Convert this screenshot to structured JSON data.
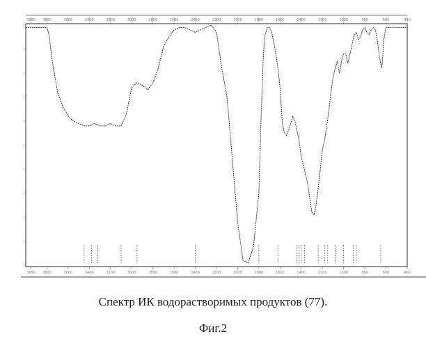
{
  "figure": {
    "caption": "Спектр ИК водорастворимых продуктов (77).",
    "label": "Фиг.2"
  },
  "chart_data": {
    "type": "line",
    "title": "",
    "xlabel": "",
    "ylabel": "",
    "xlim": [
      4000,
      400
    ],
    "ylim": [
      0,
      100
    ],
    "grid": false,
    "x_direction": "decreasing",
    "xticks": [
      3950,
      3800,
      3600,
      3400,
      3200,
      3000,
      2800,
      2600,
      2400,
      2200,
      2000,
      1800,
      1600,
      1400,
      1200,
      1000,
      800,
      600,
      400
    ],
    "x": [
      4000,
      3850,
      3800,
      3780,
      3750,
      3700,
      3650,
      3600,
      3550,
      3500,
      3450,
      3400,
      3350,
      3300,
      3250,
      3200,
      3150,
      3100,
      3050,
      3000,
      2950,
      2900,
      2850,
      2800,
      2750,
      2700,
      2650,
      2600,
      2550,
      2500,
      2450,
      2400,
      2350,
      2300,
      2250,
      2200,
      2150,
      2100,
      2050,
      2000,
      1950,
      1900,
      1850,
      1800,
      1780,
      1760,
      1750,
      1740,
      1720,
      1700,
      1680,
      1660,
      1640,
      1620,
      1600,
      1580,
      1560,
      1540,
      1520,
      1500,
      1480,
      1460,
      1440,
      1420,
      1400,
      1380,
      1360,
      1340,
      1320,
      1300,
      1280,
      1260,
      1240,
      1220,
      1200,
      1180,
      1160,
      1140,
      1120,
      1100,
      1080,
      1060,
      1040,
      1020,
      1000,
      980,
      960,
      940,
      920,
      900,
      880,
      860,
      840,
      820,
      800,
      780,
      760,
      740,
      720,
      700,
      680,
      660,
      640,
      620,
      600,
      580,
      560,
      540,
      520,
      500,
      480,
      460,
      440,
      420,
      400
    ],
    "y": [
      99,
      99,
      99,
      96,
      85,
      72,
      66,
      62,
      60,
      59,
      58,
      58,
      59,
      58,
      58,
      59,
      58,
      58,
      63,
      74,
      76,
      75,
      73,
      76,
      82,
      91,
      95,
      98,
      99,
      99,
      98,
      97,
      98,
      99,
      100,
      97,
      82,
      70,
      44,
      18,
      2,
      1,
      8,
      30,
      60,
      85,
      92,
      96,
      99,
      99,
      97,
      93,
      88,
      82,
      74,
      60,
      55,
      54,
      56,
      59,
      62,
      60,
      56,
      52,
      45,
      42,
      38,
      34,
      28,
      22,
      21,
      25,
      32,
      40,
      48,
      52,
      58,
      64,
      72,
      78,
      82,
      85,
      80,
      85,
      88,
      88,
      84,
      88,
      92,
      96,
      97,
      94,
      95,
      98,
      99,
      97,
      96,
      98,
      99,
      98,
      93,
      86,
      82,
      94,
      99,
      99,
      99,
      99,
      99,
      99,
      99,
      99,
      99,
      99,
      99
    ],
    "peak_markers": [
      3450,
      3380,
      3320,
      3100,
      2950,
      2400,
      1800,
      1620,
      1440,
      1420,
      1400,
      1370,
      1240,
      1180,
      1150,
      1080,
      1000,
      910,
      880,
      650
    ]
  }
}
